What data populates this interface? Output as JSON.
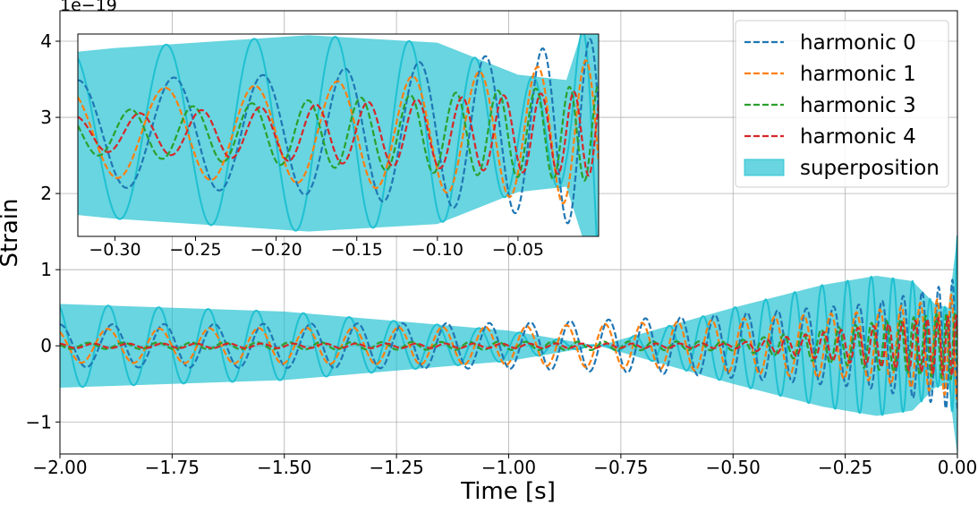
{
  "chart_data": {
    "type": "line",
    "title": "",
    "xlabel": "Time [s]",
    "ylabel": "Strain",
    "y_offset_label": "1e−19",
    "xlim": [
      -2.0,
      0.0
    ],
    "ylim": [
      -1.42,
      4.4
    ],
    "grid": true,
    "legend_position": "top-right",
    "x_ticks": [
      -2.0,
      -1.75,
      -1.5,
      -1.25,
      -1.0,
      -0.75,
      -0.5,
      -0.25,
      0.0
    ],
    "x_tick_labels": [
      "−2.00",
      "−1.75",
      "−1.50",
      "−1.25",
      "−1.00",
      "−0.75",
      "−0.50",
      "−0.25",
      "0.00"
    ],
    "y_ticks": [
      -1,
      0,
      1,
      2,
      3,
      4
    ],
    "y_tick_labels": [
      "−1",
      "0",
      "1",
      "2",
      "3",
      "4"
    ],
    "series": [
      {
        "name": "harmonic 0",
        "style": "dashed",
        "color": "#1f77b4",
        "amplitude_envelope": {
          "t": [
            -2.0,
            -1.0,
            -0.6,
            -0.2,
            -0.05,
            0.0
          ],
          "amp": [
            0.28,
            0.3,
            0.38,
            0.55,
            0.75,
            0.9
          ]
        }
      },
      {
        "name": "harmonic 1",
        "style": "dashed",
        "color": "#ff7f0e",
        "amplitude_envelope": {
          "t": [
            -2.0,
            -1.0,
            -0.6,
            -0.2,
            -0.05,
            0.0
          ],
          "amp": [
            0.22,
            0.25,
            0.32,
            0.45,
            0.6,
            0.7
          ]
        }
      },
      {
        "name": "harmonic 3",
        "style": "dashed",
        "color": "#2ca02c",
        "amplitude_envelope": {
          "t": [
            -2.0,
            -0.5,
            0.0
          ],
          "amp": [
            0.04,
            0.06,
            0.45
          ]
        }
      },
      {
        "name": "harmonic 4",
        "style": "dashed",
        "color": "#d62728",
        "amplitude_envelope": {
          "t": [
            -2.0,
            -0.5,
            0.0
          ],
          "amp": [
            0.03,
            0.03,
            0.4
          ]
        }
      },
      {
        "name": "superposition",
        "style": "filled",
        "color": "#17becf",
        "amplitude_envelope": {
          "t": [
            -2.0,
            -1.5,
            -1.0,
            -0.8,
            -0.5,
            -0.3,
            -0.18,
            -0.1,
            -0.05,
            -0.02,
            0.0
          ],
          "amp": [
            0.55,
            0.45,
            0.2,
            0.0,
            0.5,
            0.8,
            0.92,
            0.85,
            0.55,
            0.5,
            1.45
          ]
        }
      }
    ],
    "inset": {
      "xlim": [
        -0.323,
        0.0
      ],
      "ylim": [
        1.45,
        4.2
      ],
      "x_ticks": [
        -0.3,
        -0.25,
        -0.2,
        -0.15,
        -0.1,
        -0.05
      ],
      "x_tick_labels": [
        "−0.30",
        "−0.25",
        "−0.20",
        "−0.15",
        "−0.10",
        "−0.05"
      ]
    }
  }
}
